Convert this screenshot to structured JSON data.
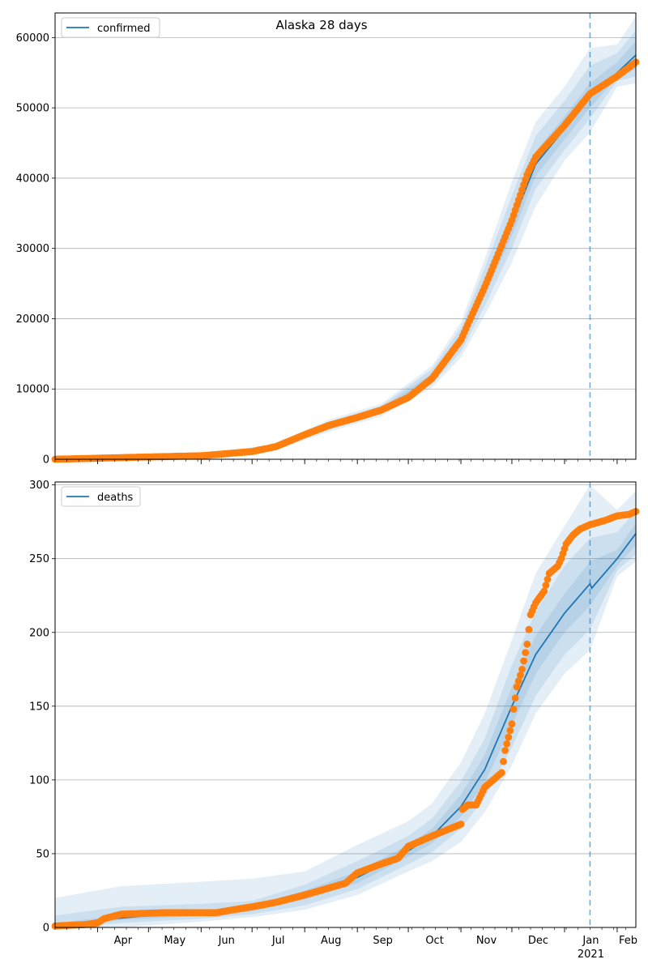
{
  "chart_data": {
    "title": "Alaska 28 days",
    "x_axis": {
      "month_labels": [
        "Apr",
        "May",
        "Jun",
        "Jul",
        "Aug",
        "Sep",
        "Oct",
        "Nov",
        "Dec",
        "Jan",
        "Feb"
      ],
      "year_label": "2021",
      "range": [
        "2020-03-07",
        "2021-02-12"
      ],
      "forecast_start": "2021-01-16"
    },
    "colors": {
      "model": "#1f77b4",
      "observed": "#ff7f0e",
      "band": "#1f77b4",
      "grid": "#b0b0b0",
      "forecast_line": "#1f77b4"
    },
    "panels": [
      {
        "type": "line",
        "legend": "confirmed",
        "legend_position": "top-left",
        "ylim": [
          0,
          63500
        ],
        "yticks": [
          0,
          10000,
          20000,
          30000,
          40000,
          50000,
          60000
        ],
        "grid": "y",
        "model": [
          [
            "2020-03-07",
            0
          ],
          [
            "2020-04-01",
            150
          ],
          [
            "2020-05-01",
            300
          ],
          [
            "2020-06-01",
            450
          ],
          [
            "2020-07-01",
            1000
          ],
          [
            "2020-07-15",
            1700
          ],
          [
            "2020-08-01",
            3300
          ],
          [
            "2020-08-15",
            4700
          ],
          [
            "2020-09-01",
            5900
          ],
          [
            "2020-09-15",
            7000
          ],
          [
            "2020-10-01",
            9000
          ],
          [
            "2020-10-15",
            11700
          ],
          [
            "2020-11-01",
            17000
          ],
          [
            "2020-11-15",
            24500
          ],
          [
            "2020-12-01",
            33500
          ],
          [
            "2020-12-15",
            42000
          ],
          [
            "2021-01-01",
            47000
          ],
          [
            "2021-01-16",
            51500
          ],
          [
            "2021-02-01",
            55000
          ],
          [
            "2021-02-12",
            57500
          ]
        ],
        "bands": [
          {
            "opacity": 0.12,
            "points": [
              [
                "2020-03-07",
                0,
                0
              ],
              [
                "2020-06-01",
                300,
                700
              ],
              [
                "2020-07-15",
                1300,
                2200
              ],
              [
                "2020-08-15",
                3900,
                5600
              ],
              [
                "2020-09-15",
                6100,
                7900
              ],
              [
                "2020-10-15",
                10200,
                13300
              ],
              [
                "2020-11-01",
                14500,
                19500
              ],
              [
                "2020-11-15",
                20500,
                28500
              ],
              [
                "2020-12-01",
                28000,
                39500
              ],
              [
                "2020-12-15",
                36000,
                48000
              ],
              [
                "2021-01-01",
                42500,
                53000
              ],
              [
                "2021-01-16",
                46500,
                58500
              ],
              [
                "2021-02-01",
                53000,
                59000
              ],
              [
                "2021-02-12",
                53500,
                63000
              ]
            ]
          },
          {
            "opacity": 0.12,
            "points": [
              [
                "2020-03-07",
                0,
                0
              ],
              [
                "2020-06-01",
                350,
                600
              ],
              [
                "2020-07-15",
                1450,
                2000
              ],
              [
                "2020-08-15",
                4200,
                5300
              ],
              [
                "2020-09-15",
                6400,
                7600
              ],
              [
                "2020-10-15",
                10700,
                12800
              ],
              [
                "2020-11-01",
                15300,
                18700
              ],
              [
                "2020-11-15",
                21800,
                27200
              ],
              [
                "2020-12-01",
                30000,
                37500
              ],
              [
                "2020-12-15",
                38500,
                46000
              ],
              [
                "2021-01-01",
                44000,
                51000
              ],
              [
                "2021-01-16",
                48500,
                56000
              ],
              [
                "2021-02-01",
                53800,
                57800
              ],
              [
                "2021-02-12",
                54500,
                61000
              ]
            ]
          },
          {
            "opacity": 0.12,
            "points": [
              [
                "2020-03-07",
                0,
                0
              ],
              [
                "2020-06-01",
                400,
                520
              ],
              [
                "2020-07-15",
                1550,
                1850
              ],
              [
                "2020-08-15",
                4450,
                4950
              ],
              [
                "2020-09-15",
                6700,
                7300
              ],
              [
                "2020-10-15",
                11200,
                12200
              ],
              [
                "2020-11-01",
                16200,
                17800
              ],
              [
                "2020-11-15",
                23200,
                25800
              ],
              [
                "2020-12-01",
                31800,
                35300
              ],
              [
                "2020-12-15",
                40300,
                43800
              ],
              [
                "2021-01-01",
                45500,
                48800
              ],
              [
                "2021-01-16",
                50000,
                53500
              ],
              [
                "2021-02-01",
                54300,
                56500
              ],
              [
                "2021-02-12",
                55500,
                59500
              ]
            ]
          }
        ],
        "observed": [
          [
            "2020-03-07",
            0
          ],
          [
            "2020-04-01",
            150
          ],
          [
            "2020-05-01",
            330
          ],
          [
            "2020-06-01",
            500
          ],
          [
            "2020-07-01",
            1100
          ],
          [
            "2020-07-15",
            1800
          ],
          [
            "2020-08-01",
            3500
          ],
          [
            "2020-08-15",
            4800
          ],
          [
            "2020-09-01",
            5950
          ],
          [
            "2020-09-15",
            7000
          ],
          [
            "2020-10-01",
            8800
          ],
          [
            "2020-10-15",
            11500
          ],
          [
            "2020-11-01",
            17000
          ],
          [
            "2020-11-15",
            24500
          ],
          [
            "2020-12-01",
            34000
          ],
          [
            "2020-12-10",
            40500
          ],
          [
            "2020-12-15",
            43000
          ],
          [
            "2021-01-01",
            47500
          ],
          [
            "2021-01-16",
            52000
          ],
          [
            "2021-02-01",
            54500
          ],
          [
            "2021-02-12",
            56500
          ]
        ]
      },
      {
        "type": "line",
        "legend": "deaths",
        "legend_position": "top-left",
        "ylim": [
          0,
          302
        ],
        "yticks": [
          0,
          50,
          100,
          150,
          200,
          250,
          300
        ],
        "grid": "y",
        "model": [
          [
            "2020-03-07",
            0
          ],
          [
            "2020-04-01",
            5
          ],
          [
            "2020-05-01",
            8
          ],
          [
            "2020-06-01",
            9
          ],
          [
            "2020-07-01",
            13
          ],
          [
            "2020-07-15",
            17
          ],
          [
            "2020-08-01",
            22
          ],
          [
            "2020-08-15",
            28
          ],
          [
            "2020-09-01",
            34
          ],
          [
            "2020-09-15",
            42
          ],
          [
            "2020-10-01",
            52
          ],
          [
            "2020-10-15",
            62
          ],
          [
            "2020-11-01",
            82
          ],
          [
            "2020-11-15",
            107
          ],
          [
            "2020-12-01",
            150
          ],
          [
            "2020-12-15",
            185
          ],
          [
            "2021-01-01",
            213
          ],
          [
            "2021-01-16",
            233
          ],
          [
            "2021-01-17",
            230
          ],
          [
            "2021-02-01",
            250
          ],
          [
            "2021-02-12",
            267
          ]
        ],
        "bands": [
          {
            "opacity": 0.12,
            "points": [
              [
                "2020-03-07",
                0,
                20
              ],
              [
                "2020-04-15",
                0,
                28
              ],
              [
                "2020-06-01",
                4,
                31
              ],
              [
                "2020-07-01",
                7,
                33
              ],
              [
                "2020-08-01",
                12,
                38
              ],
              [
                "2020-09-01",
                22,
                56
              ],
              [
                "2020-10-01",
                38,
                72
              ],
              [
                "2020-10-15",
                45,
                84
              ],
              [
                "2020-11-01",
                58,
                112
              ],
              [
                "2020-11-15",
                78,
                145
              ],
              [
                "2020-12-01",
                110,
                195
              ],
              [
                "2020-12-15",
                145,
                240
              ],
              [
                "2021-01-01",
                172,
                272
              ],
              [
                "2021-01-16",
                188,
                300
              ],
              [
                "2021-02-01",
                238,
                283
              ],
              [
                "2021-02-12",
                248,
                296
              ]
            ]
          },
          {
            "opacity": 0.12,
            "points": [
              [
                "2020-03-07",
                0,
                8
              ],
              [
                "2020-04-15",
                3,
                14
              ],
              [
                "2020-06-01",
                6,
                16
              ],
              [
                "2020-07-01",
                9,
                18
              ],
              [
                "2020-08-01",
                15,
                29
              ],
              [
                "2020-09-01",
                26,
                45
              ],
              [
                "2020-10-01",
                43,
                62
              ],
              [
                "2020-10-15",
                51,
                74
              ],
              [
                "2020-11-01",
                67,
                99
              ],
              [
                "2020-11-15",
                88,
                128
              ],
              [
                "2020-12-01",
                122,
                178
              ],
              [
                "2020-12-15",
                157,
                214
              ],
              [
                "2021-01-01",
                185,
                245
              ],
              [
                "2021-01-16",
                202,
                264
              ],
              [
                "2021-02-01",
                242,
                268
              ],
              [
                "2021-02-12",
                253,
                282
              ]
            ]
          },
          {
            "opacity": 0.12,
            "points": [
              [
                "2020-03-07",
                0,
                3
              ],
              [
                "2020-04-15",
                5,
                8
              ],
              [
                "2020-06-01",
                8,
                11
              ],
              [
                "2020-07-01",
                11,
                15
              ],
              [
                "2020-08-01",
                19,
                25
              ],
              [
                "2020-09-01",
                30,
                38
              ],
              [
                "2020-10-01",
                48,
                56
              ],
              [
                "2020-10-15",
                57,
                67
              ],
              [
                "2020-11-01",
                75,
                90
              ],
              [
                "2020-11-15",
                98,
                117
              ],
              [
                "2020-12-01",
                137,
                163
              ],
              [
                "2020-12-15",
                172,
                198
              ],
              [
                "2021-01-01",
                200,
                226
              ],
              [
                "2021-01-16",
                218,
                248
              ],
              [
                "2021-02-01",
                245,
                256
              ],
              [
                "2021-02-12",
                259,
                274
              ]
            ]
          }
        ],
        "observed": [
          [
            "2020-03-07",
            1
          ],
          [
            "2020-03-25",
            2
          ],
          [
            "2020-04-01",
            3
          ],
          [
            "2020-04-05",
            6
          ],
          [
            "2020-04-15",
            9
          ],
          [
            "2020-05-10",
            10
          ],
          [
            "2020-06-10",
            10
          ],
          [
            "2020-06-20",
            12
          ],
          [
            "2020-07-01",
            14
          ],
          [
            "2020-07-15",
            17
          ],
          [
            "2020-08-01",
            22
          ],
          [
            "2020-08-10",
            25
          ],
          [
            "2020-08-25",
            30
          ],
          [
            "2020-09-01",
            37
          ],
          [
            "2020-09-15",
            43
          ],
          [
            "2020-09-25",
            47
          ],
          [
            "2020-10-01",
            55
          ],
          [
            "2020-10-15",
            62
          ],
          [
            "2020-11-01",
            70
          ],
          [
            "2020-11-02",
            80
          ],
          [
            "2020-11-05",
            83
          ],
          [
            "2020-11-10",
            83
          ],
          [
            "2020-11-15",
            95
          ],
          [
            "2020-11-20",
            100
          ],
          [
            "2020-11-25",
            105
          ],
          [
            "2020-11-27",
            120
          ],
          [
            "2020-12-01",
            138
          ],
          [
            "2020-12-02",
            148
          ],
          [
            "2020-12-04",
            163
          ],
          [
            "2020-12-07",
            175
          ],
          [
            "2020-12-10",
            192
          ],
          [
            "2020-12-12",
            212
          ],
          [
            "2020-12-15",
            220
          ],
          [
            "2020-12-20",
            228
          ],
          [
            "2020-12-23",
            240
          ],
          [
            "2020-12-28",
            245
          ],
          [
            "2020-12-30",
            250
          ],
          [
            "2021-01-02",
            260
          ],
          [
            "2021-01-06",
            266
          ],
          [
            "2021-01-10",
            270
          ],
          [
            "2021-01-16",
            273
          ],
          [
            "2021-01-25",
            276
          ],
          [
            "2021-02-01",
            279
          ],
          [
            "2021-02-08",
            280
          ],
          [
            "2021-02-12",
            282
          ]
        ]
      }
    ]
  }
}
